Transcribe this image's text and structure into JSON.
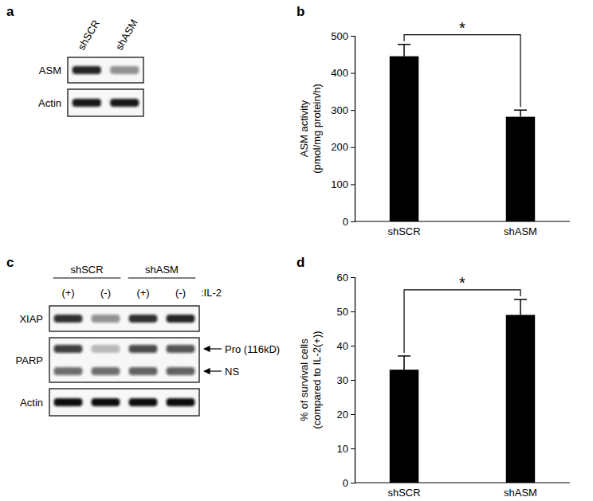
{
  "chart_data": [
    {
      "type": "western_blot",
      "label": "a",
      "lanes": [
        "shSCR",
        "shASM"
      ],
      "rows": [
        {
          "name": "ASM",
          "bands": [
            {
              "intensity": [
                0.9,
                0.45
              ]
            }
          ]
        },
        {
          "name": "Actin",
          "bands": [
            {
              "intensity": [
                0.95,
                0.95
              ]
            }
          ]
        }
      ]
    },
    {
      "type": "bar",
      "label": "b",
      "categories": [
        "shSCR",
        "shASM"
      ],
      "values": [
        445,
        282
      ],
      "errors": [
        32,
        18
      ],
      "ylabel": [
        "ASM activity",
        "(pmol/mg protein/h)"
      ],
      "ylim": [
        0,
        500
      ],
      "yticks": [
        0,
        100,
        200,
        300,
        400,
        500
      ],
      "color": "#000000",
      "annotations": [
        "*"
      ]
    },
    {
      "type": "western_blot",
      "label": "c",
      "lane_groups": [
        {
          "name": "shSCR",
          "lanes": [
            "(+)",
            "(-)"
          ]
        },
        {
          "name": "shASM",
          "lanes": [
            "(+)",
            "(-)"
          ]
        }
      ],
      "lane_axis_label": ":IL-2",
      "rows": [
        {
          "name": "XIAP",
          "bands": [
            {
              "intensity": [
                0.85,
                0.45,
                0.85,
                0.9
              ]
            }
          ]
        },
        {
          "name": "PARP",
          "bands": [
            {
              "label": "Pro (116kD)",
              "intensity": [
                0.8,
                0.25,
                0.75,
                0.7
              ]
            },
            {
              "label": "NS",
              "intensity": [
                0.6,
                0.6,
                0.65,
                0.65
              ]
            }
          ]
        },
        {
          "name": "Actin",
          "bands": [
            {
              "intensity": [
                1,
                1,
                1,
                1
              ]
            }
          ]
        }
      ]
    },
    {
      "type": "bar",
      "label": "d",
      "categories": [
        "shSCR",
        "shASM"
      ],
      "values": [
        33,
        49
      ],
      "errors": [
        4,
        4.5
      ],
      "ylabel": [
        "% of survival cells",
        "(compared to IL-2(+))"
      ],
      "ylim": [
        0,
        60
      ],
      "yticks": [
        0,
        10,
        20,
        30,
        40,
        50,
        60
      ],
      "color": "#000000",
      "annotations": [
        "*"
      ]
    }
  ]
}
